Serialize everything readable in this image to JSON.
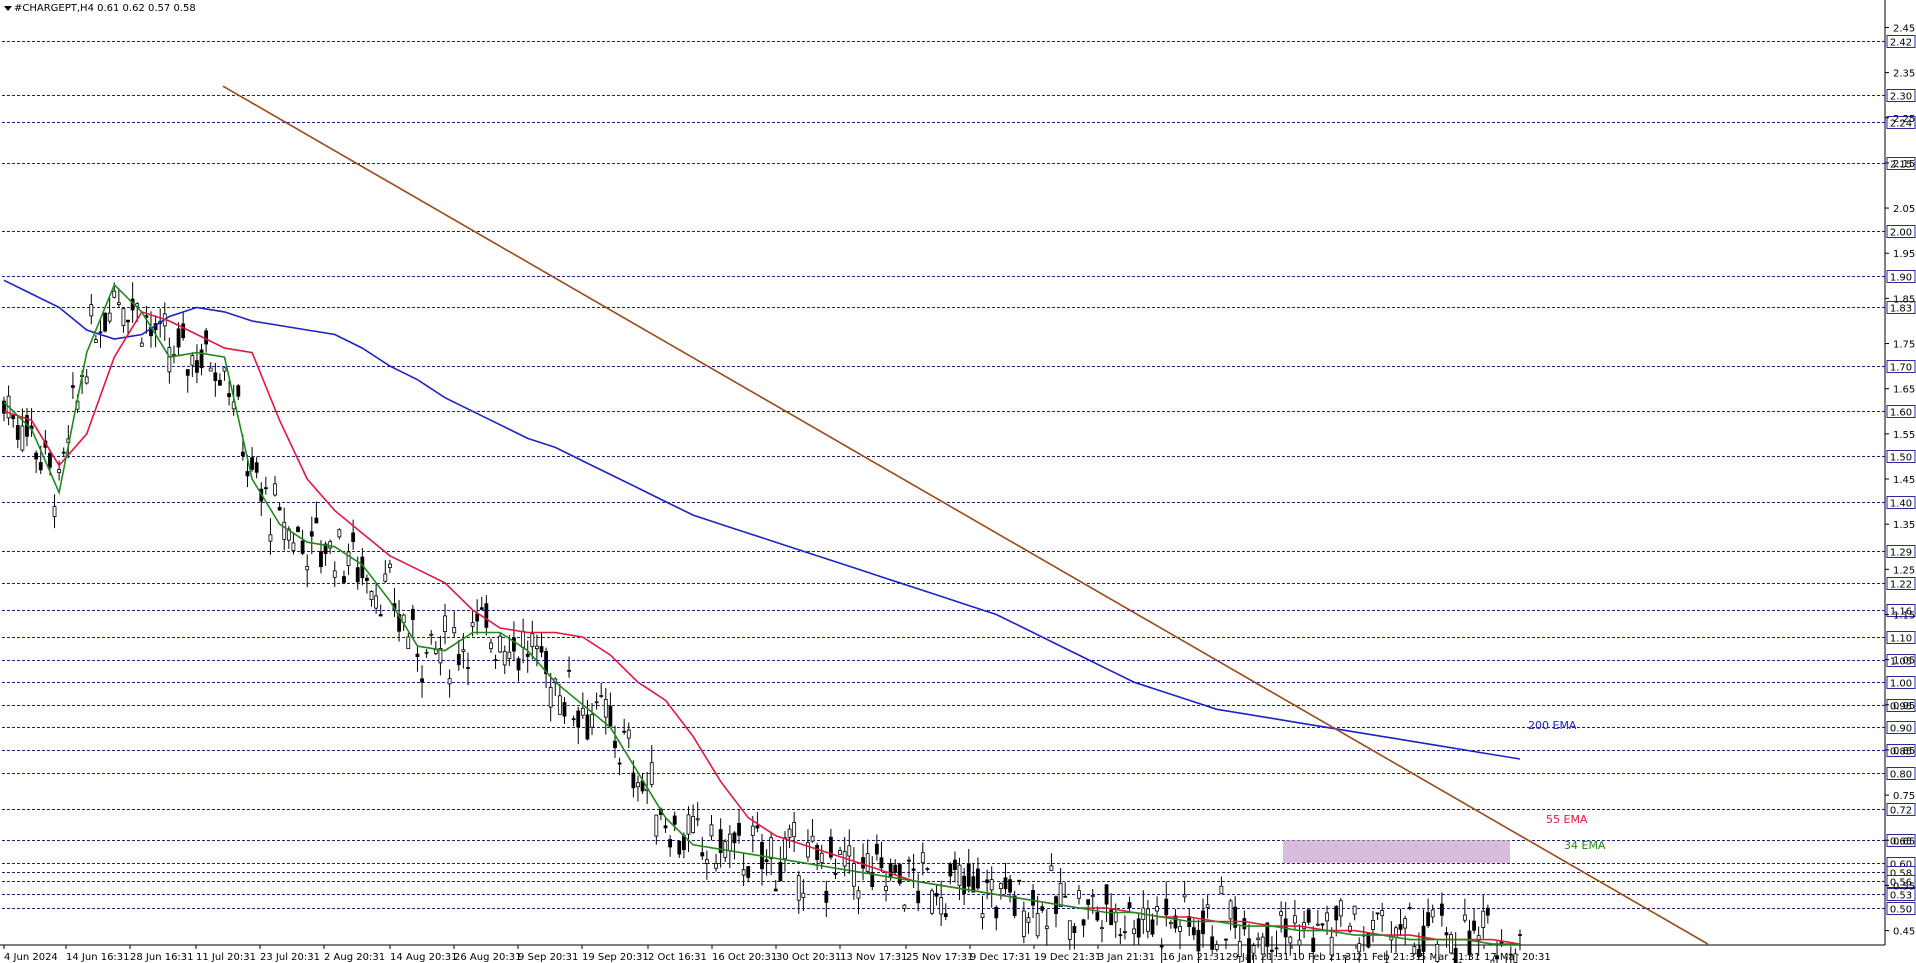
{
  "header": {
    "symbol_line": "#CHARGEPT,H4  0.61 0.62 0.57 0.58"
  },
  "colors": {
    "ema200": "#1c22c4",
    "ema55": "#e3173e",
    "ema34": "#1f8a1f",
    "trendline": "#9c4a17",
    "zone_fill": "#c9a6cf",
    "grid": "#1a1a7a",
    "candle": "#000000"
  },
  "chart_data": {
    "type": "line",
    "title": "#CHARGEPT,H4  0.61 0.62 0.57 0.58",
    "xlabel": "",
    "ylabel": "",
    "ylim": [
      0.42,
      2.47
    ],
    "grid": true,
    "price_scale_side": "right",
    "x_ticks": [
      "4 Jun 2024",
      "14 Jun 16:31",
      "28 Jun 16:31",
      "11 Jul 20:31",
      "23 Jul 20:31",
      "2 Aug 20:31",
      "14 Aug 20:31",
      "26 Aug 20:31",
      "9 Sep 20:31",
      "19 Sep 20:31",
      "2 Oct 16:31",
      "16 Oct 20:31",
      "30 Oct 20:31",
      "13 Nov 17:31",
      "25 Nov 17:31",
      "9 Dec 17:31",
      "19 Dec 21:31",
      "3 Jan 21:31",
      "16 Jan 21:31",
      "29 Jan 21:31",
      "10 Feb 21:31",
      "21 Feb 21:31",
      "5 Mar 21:31",
      "17 Mar 20:31"
    ],
    "y_ticks": [
      "2.45",
      "2.35",
      "2.25",
      "2.15",
      "2.05",
      "1.95",
      "1.85",
      "1.75",
      "1.65",
      "1.55",
      "1.45",
      "1.35",
      "1.25",
      "1.15",
      "1.05",
      "0.95",
      "0.85",
      "0.75",
      "0.65",
      "0.55",
      "0.45"
    ],
    "highlighted_levels": [
      "2.42",
      "2.30",
      "2.24",
      "2.15",
      "2.00",
      "1.90",
      "1.83",
      "1.70",
      "1.60",
      "1.50",
      "1.40",
      "1.29",
      "1.22",
      "1.16",
      "1.10",
      "1.05",
      "1.00",
      "0.95",
      "0.90",
      "0.85",
      "0.80",
      "0.72",
      "0.65",
      "0.60",
      "0.58",
      "0.56",
      "0.53",
      "0.50"
    ],
    "series": [
      {
        "name": "200 EMA",
        "x": [
          0,
          6,
          12,
          18,
          24,
          30,
          36,
          42,
          48,
          54,
          60,
          66,
          72,
          78,
          84,
          90,
          96,
          102,
          108,
          114,
          120,
          126,
          132,
          138,
          144,
          150,
          156,
          162,
          168,
          174,
          180,
          186,
          192,
          198,
          204,
          210,
          216,
          222,
          228,
          234,
          240,
          246,
          252,
          258,
          264,
          270,
          276,
          282,
          288,
          294,
          300,
          306,
          312,
          318,
          324,
          330
        ],
        "values": [
          1.89,
          1.86,
          1.83,
          1.78,
          1.76,
          1.77,
          1.81,
          1.83,
          1.82,
          1.8,
          1.79,
          1.78,
          1.77,
          1.74,
          1.7,
          1.67,
          1.63,
          1.6,
          1.57,
          1.54,
          1.52,
          1.49,
          1.46,
          1.43,
          1.4,
          1.37,
          1.35,
          1.33,
          1.31,
          1.29,
          1.27,
          1.25,
          1.23,
          1.21,
          1.19,
          1.17,
          1.15,
          1.12,
          1.09,
          1.06,
          1.03,
          1.0,
          0.98,
          0.96,
          0.94,
          0.93,
          0.92,
          0.91,
          0.9,
          0.89,
          0.88,
          0.87,
          0.86,
          0.85,
          0.84,
          0.83
        ]
      },
      {
        "name": "55 EMA",
        "x": [
          0,
          6,
          12,
          18,
          24,
          30,
          36,
          42,
          48,
          54,
          60,
          66,
          72,
          78,
          84,
          90,
          96,
          102,
          108,
          114,
          120,
          126,
          132,
          138,
          144,
          150,
          156,
          162,
          168,
          174,
          180,
          186,
          192,
          198,
          204,
          210,
          216,
          222,
          228,
          234,
          240,
          246,
          252,
          258,
          264,
          270,
          276,
          282,
          288,
          294,
          300,
          306,
          312,
          318,
          324,
          330
        ],
        "values": [
          1.6,
          1.58,
          1.48,
          1.55,
          1.72,
          1.82,
          1.8,
          1.77,
          1.74,
          1.73,
          1.58,
          1.45,
          1.38,
          1.33,
          1.28,
          1.25,
          1.22,
          1.16,
          1.12,
          1.11,
          1.11,
          1.1,
          1.06,
          1.0,
          0.96,
          0.88,
          0.78,
          0.7,
          0.66,
          0.64,
          0.62,
          0.6,
          0.58,
          0.56,
          0.55,
          0.54,
          0.53,
          0.52,
          0.51,
          0.5,
          0.5,
          0.49,
          0.48,
          0.48,
          0.47,
          0.47,
          0.46,
          0.46,
          0.45,
          0.45,
          0.44,
          0.44,
          0.43,
          0.43,
          0.43,
          0.42
        ]
      },
      {
        "name": "34 EMA",
        "x": [
          0,
          6,
          12,
          18,
          24,
          30,
          36,
          42,
          48,
          54,
          60,
          66,
          72,
          78,
          84,
          90,
          96,
          102,
          108,
          114,
          120,
          126,
          132,
          138,
          144,
          150,
          156,
          162,
          168,
          174,
          180,
          186,
          192,
          198,
          204,
          210,
          216,
          222,
          228,
          234,
          240,
          246,
          252,
          258,
          264,
          270,
          276,
          282,
          288,
          294,
          300,
          306,
          312,
          318,
          324,
          330
        ],
        "values": [
          1.62,
          1.56,
          1.42,
          1.73,
          1.88,
          1.82,
          1.72,
          1.73,
          1.72,
          1.45,
          1.35,
          1.31,
          1.3,
          1.26,
          1.18,
          1.08,
          1.07,
          1.11,
          1.11,
          1.07,
          1.0,
          0.95,
          0.9,
          0.8,
          0.7,
          0.64,
          0.63,
          0.62,
          0.61,
          0.6,
          0.59,
          0.58,
          0.57,
          0.56,
          0.55,
          0.54,
          0.53,
          0.52,
          0.51,
          0.5,
          0.49,
          0.49,
          0.48,
          0.47,
          0.47,
          0.46,
          0.46,
          0.45,
          0.45,
          0.44,
          0.44,
          0.43,
          0.43,
          0.43,
          0.42,
          0.42
        ]
      }
    ],
    "annotations": [
      {
        "text": "200 EMA",
        "color": "#1c22c4"
      },
      {
        "text": "55 EMA",
        "color": "#e3173e"
      },
      {
        "text": "34 EMA",
        "color": "#1f8a1f"
      }
    ],
    "trendline": {
      "from_price": 2.32,
      "to_price": 0.42
    },
    "zone": {
      "top": 0.65,
      "bottom": 0.6
    }
  }
}
